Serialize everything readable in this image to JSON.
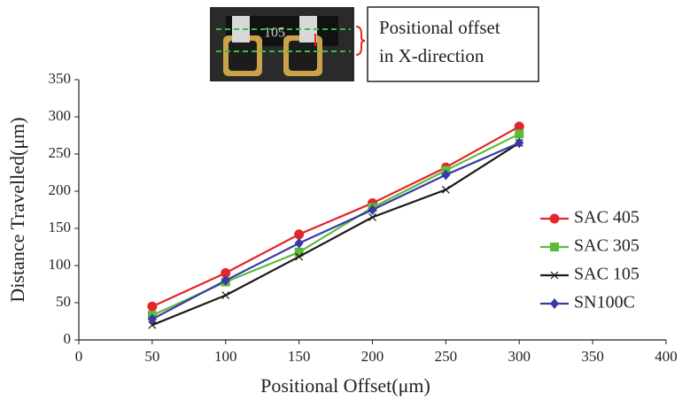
{
  "chart_data": {
    "type": "line",
    "xlabel": "Positional Offset(μm)",
    "ylabel": "Distance Travelled(μm)",
    "annotation": [
      "Positional offset",
      "in X-direction"
    ],
    "inset_marking": "105",
    "x": [
      50,
      100,
      150,
      200,
      250,
      300
    ],
    "series": [
      {
        "name": "SAC 405",
        "color": "#e3262b",
        "marker": "circle",
        "values": [
          45,
          90,
          142,
          184,
          232,
          287
        ]
      },
      {
        "name": "SAC 305",
        "color": "#5dbb3c",
        "marker": "square",
        "values": [
          33,
          78,
          118,
          178,
          228,
          277
        ]
      },
      {
        "name": "SAC 105",
        "color": "#1a1a1a",
        "marker": "x",
        "values": [
          20,
          60,
          112,
          165,
          202,
          265
        ]
      },
      {
        "name": "SN100C",
        "color": "#3a3aa6",
        "marker": "diamond",
        "values": [
          28,
          80,
          130,
          175,
          222,
          265
        ]
      }
    ],
    "xlim": [
      0,
      400
    ],
    "xticks": [
      0,
      50,
      100,
      150,
      200,
      250,
      300,
      350,
      400
    ],
    "ylim": [
      0,
      350
    ],
    "yticks": [
      0,
      50,
      100,
      150,
      200,
      250,
      300,
      350
    ],
    "grid": false,
    "legend": "right"
  }
}
